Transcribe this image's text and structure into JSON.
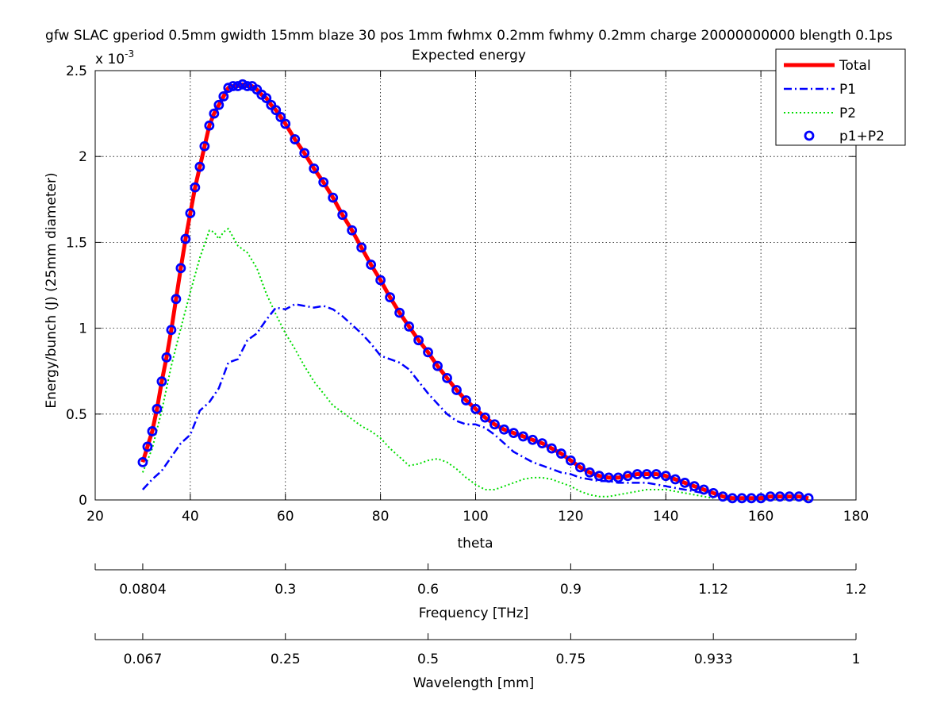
{
  "chart_data": {
    "type": "line",
    "title": "gfw SLAC gperiod 0.5mm gwidth 15mm blaze 30 pos 1mm fwhmx 0.2mm fwhmy 0.2mm charge 20000000000 blength 0.1ps",
    "subtitle": "Expected energy",
    "xlabel": "theta",
    "ylabel": "Energy/bunch (J) (25mm diameter)",
    "y_exponent_label": "x 10",
    "y_exponent_power": "-3",
    "xlim": [
      20,
      180
    ],
    "ylim": [
      0,
      2.5
    ],
    "x_ticks": [
      "20",
      "40",
      "60",
      "80",
      "100",
      "120",
      "140",
      "160",
      "180"
    ],
    "y_ticks": [
      "0",
      "0.5",
      "1",
      "1.5",
      "2",
      "2.5"
    ],
    "grid": true,
    "legend_position": "top-right",
    "secondary_axes": [
      {
        "label": "Frequency [THz]",
        "ticks": [
          {
            "theta": 20,
            "label": ""
          },
          {
            "theta": 30,
            "label": "0.0804"
          },
          {
            "theta": 60,
            "label": "0.3"
          },
          {
            "theta": 90,
            "label": "0.6"
          },
          {
            "theta": 120,
            "label": "0.9"
          },
          {
            "theta": 150,
            "label": "1.12"
          },
          {
            "theta": 180,
            "label": "1.2"
          }
        ]
      },
      {
        "label": "Wavelength [mm]",
        "ticks": [
          {
            "theta": 20,
            "label": ""
          },
          {
            "theta": 30,
            "label": "0.067"
          },
          {
            "theta": 60,
            "label": "0.25"
          },
          {
            "theta": 90,
            "label": "0.5"
          },
          {
            "theta": 120,
            "label": "0.75"
          },
          {
            "theta": 150,
            "label": "0.933"
          },
          {
            "theta": 180,
            "label": "1"
          }
        ]
      }
    ],
    "series": [
      {
        "name": "Total",
        "style": "solid",
        "color": "#ff0000",
        "points": [
          [
            30,
            0.22
          ],
          [
            31,
            0.31
          ],
          [
            32,
            0.4
          ],
          [
            33,
            0.53
          ],
          [
            34,
            0.69
          ],
          [
            35,
            0.83
          ],
          [
            36,
            0.99
          ],
          [
            37,
            1.17
          ],
          [
            38,
            1.35
          ],
          [
            39,
            1.52
          ],
          [
            40,
            1.67
          ],
          [
            41,
            1.82
          ],
          [
            42,
            1.94
          ],
          [
            43,
            2.06
          ],
          [
            44,
            2.18
          ],
          [
            45,
            2.25
          ],
          [
            46,
            2.3
          ],
          [
            47,
            2.35
          ],
          [
            48,
            2.4
          ],
          [
            49,
            2.41
          ],
          [
            50,
            2.41
          ],
          [
            51,
            2.42
          ],
          [
            52,
            2.41
          ],
          [
            53,
            2.41
          ],
          [
            54,
            2.39
          ],
          [
            55,
            2.36
          ],
          [
            56,
            2.34
          ],
          [
            57,
            2.3
          ],
          [
            58,
            2.27
          ],
          [
            59,
            2.23
          ],
          [
            60,
            2.19
          ],
          [
            62,
            2.1
          ],
          [
            64,
            2.02
          ],
          [
            66,
            1.93
          ],
          [
            68,
            1.85
          ],
          [
            70,
            1.76
          ],
          [
            72,
            1.66
          ],
          [
            74,
            1.57
          ],
          [
            76,
            1.47
          ],
          [
            78,
            1.37
          ],
          [
            80,
            1.28
          ],
          [
            82,
            1.18
          ],
          [
            84,
            1.09
          ],
          [
            86,
            1.01
          ],
          [
            88,
            0.93
          ],
          [
            90,
            0.86
          ],
          [
            92,
            0.78
          ],
          [
            94,
            0.71
          ],
          [
            96,
            0.64
          ],
          [
            98,
            0.58
          ],
          [
            100,
            0.53
          ],
          [
            102,
            0.48
          ],
          [
            104,
            0.44
          ],
          [
            106,
            0.41
          ],
          [
            108,
            0.39
          ],
          [
            110,
            0.37
          ],
          [
            112,
            0.35
          ],
          [
            114,
            0.33
          ],
          [
            116,
            0.3
          ],
          [
            118,
            0.27
          ],
          [
            120,
            0.23
          ],
          [
            122,
            0.19
          ],
          [
            124,
            0.16
          ],
          [
            126,
            0.14
          ],
          [
            128,
            0.13
          ],
          [
            130,
            0.13
          ],
          [
            132,
            0.14
          ],
          [
            134,
            0.15
          ],
          [
            136,
            0.15
          ],
          [
            138,
            0.15
          ],
          [
            140,
            0.14
          ],
          [
            142,
            0.12
          ],
          [
            144,
            0.1
          ],
          [
            146,
            0.08
          ],
          [
            148,
            0.06
          ],
          [
            150,
            0.04
          ],
          [
            152,
            0.02
          ],
          [
            154,
            0.01
          ],
          [
            156,
            0.01
          ],
          [
            158,
            0.01
          ],
          [
            160,
            0.01
          ],
          [
            162,
            0.02
          ],
          [
            164,
            0.02
          ],
          [
            166,
            0.02
          ],
          [
            168,
            0.02
          ],
          [
            170,
            0.01
          ]
        ]
      },
      {
        "name": "P1",
        "style": "dashdot",
        "color": "#0000ff",
        "points": [
          [
            30,
            0.06
          ],
          [
            32,
            0.12
          ],
          [
            34,
            0.17
          ],
          [
            36,
            0.25
          ],
          [
            38,
            0.33
          ],
          [
            40,
            0.38
          ],
          [
            42,
            0.52
          ],
          [
            44,
            0.57
          ],
          [
            46,
            0.65
          ],
          [
            48,
            0.8
          ],
          [
            50,
            0.82
          ],
          [
            52,
            0.93
          ],
          [
            54,
            0.97
          ],
          [
            56,
            1.05
          ],
          [
            58,
            1.12
          ],
          [
            60,
            1.11
          ],
          [
            62,
            1.14
          ],
          [
            64,
            1.13
          ],
          [
            66,
            1.12
          ],
          [
            68,
            1.13
          ],
          [
            70,
            1.11
          ],
          [
            72,
            1.07
          ],
          [
            74,
            1.02
          ],
          [
            76,
            0.97
          ],
          [
            78,
            0.91
          ],
          [
            80,
            0.84
          ],
          [
            82,
            0.82
          ],
          [
            84,
            0.8
          ],
          [
            86,
            0.76
          ],
          [
            88,
            0.69
          ],
          [
            90,
            0.62
          ],
          [
            92,
            0.56
          ],
          [
            94,
            0.5
          ],
          [
            96,
            0.46
          ],
          [
            98,
            0.44
          ],
          [
            100,
            0.44
          ],
          [
            102,
            0.42
          ],
          [
            104,
            0.38
          ],
          [
            106,
            0.33
          ],
          [
            108,
            0.28
          ],
          [
            110,
            0.25
          ],
          [
            112,
            0.22
          ],
          [
            114,
            0.2
          ],
          [
            116,
            0.18
          ],
          [
            118,
            0.16
          ],
          [
            120,
            0.15
          ],
          [
            122,
            0.13
          ],
          [
            124,
            0.12
          ],
          [
            126,
            0.11
          ],
          [
            128,
            0.11
          ],
          [
            130,
            0.1
          ],
          [
            132,
            0.1
          ],
          [
            134,
            0.1
          ],
          [
            136,
            0.1
          ],
          [
            138,
            0.09
          ],
          [
            140,
            0.08
          ],
          [
            142,
            0.07
          ],
          [
            144,
            0.06
          ],
          [
            146,
            0.05
          ],
          [
            148,
            0.04
          ]
        ]
      },
      {
        "name": "P2",
        "style": "dotted",
        "color": "#00dd00",
        "points": [
          [
            30,
            0.16
          ],
          [
            32,
            0.3
          ],
          [
            34,
            0.52
          ],
          [
            36,
            0.78
          ],
          [
            38,
            1.0
          ],
          [
            40,
            1.21
          ],
          [
            42,
            1.41
          ],
          [
            44,
            1.57
          ],
          [
            45,
            1.56
          ],
          [
            46,
            1.52
          ],
          [
            47,
            1.56
          ],
          [
            48,
            1.58
          ],
          [
            49,
            1.53
          ],
          [
            50,
            1.48
          ],
          [
            52,
            1.44
          ],
          [
            54,
            1.35
          ],
          [
            56,
            1.2
          ],
          [
            58,
            1.08
          ],
          [
            60,
            0.97
          ],
          [
            62,
            0.88
          ],
          [
            64,
            0.78
          ],
          [
            66,
            0.69
          ],
          [
            68,
            0.62
          ],
          [
            70,
            0.55
          ],
          [
            72,
            0.51
          ],
          [
            74,
            0.47
          ],
          [
            76,
            0.43
          ],
          [
            78,
            0.4
          ],
          [
            80,
            0.36
          ],
          [
            82,
            0.3
          ],
          [
            84,
            0.25
          ],
          [
            86,
            0.2
          ],
          [
            88,
            0.21
          ],
          [
            90,
            0.23
          ],
          [
            92,
            0.24
          ],
          [
            94,
            0.22
          ],
          [
            96,
            0.18
          ],
          [
            98,
            0.13
          ],
          [
            100,
            0.09
          ],
          [
            102,
            0.06
          ],
          [
            104,
            0.06
          ],
          [
            106,
            0.08
          ],
          [
            108,
            0.1
          ],
          [
            110,
            0.12
          ],
          [
            112,
            0.13
          ],
          [
            114,
            0.13
          ],
          [
            116,
            0.12
          ],
          [
            118,
            0.1
          ],
          [
            120,
            0.08
          ],
          [
            122,
            0.05
          ],
          [
            124,
            0.03
          ],
          [
            126,
            0.02
          ],
          [
            128,
            0.02
          ],
          [
            130,
            0.03
          ],
          [
            132,
            0.04
          ],
          [
            134,
            0.05
          ],
          [
            136,
            0.06
          ],
          [
            138,
            0.06
          ],
          [
            140,
            0.06
          ],
          [
            142,
            0.05
          ],
          [
            144,
            0.04
          ],
          [
            146,
            0.03
          ],
          [
            148,
            0.02
          ],
          [
            150,
            0.01
          ]
        ]
      },
      {
        "name": "p1+P2",
        "style": "circle-markers",
        "color": "#0000ff",
        "from_series": "Total"
      }
    ]
  }
}
